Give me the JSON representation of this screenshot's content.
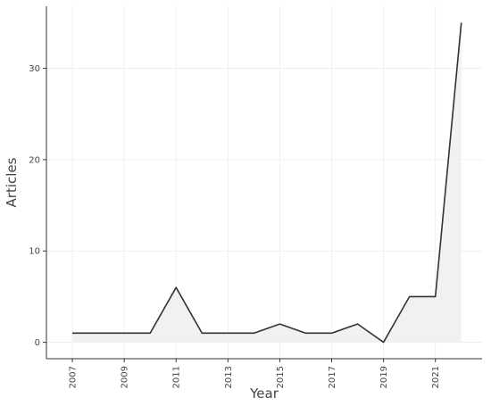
{
  "chart_data": {
    "type": "area",
    "xlabel": "Year",
    "ylabel": "Articles",
    "x": [
      2007,
      2008,
      2009,
      2010,
      2011,
      2012,
      2013,
      2014,
      2015,
      2016,
      2017,
      2018,
      2019,
      2020,
      2021,
      2022
    ],
    "values": [
      1,
      1,
      1,
      1,
      6,
      1,
      1,
      1,
      2,
      1,
      1,
      2,
      0,
      5,
      5,
      35
    ],
    "xlim": [
      2006.0,
      2022.8
    ],
    "ylim": [
      -1.8,
      36.8
    ],
    "x_ticks": [
      "2007",
      "2009",
      "2011",
      "2013",
      "2015",
      "2017",
      "2019",
      "2021"
    ],
    "y_ticks": [
      "0",
      "10",
      "20",
      "30"
    ],
    "grid": true,
    "colors": {
      "line": "#333333",
      "fill": "#f1f1ef",
      "grid": "#ececec",
      "axis": "#333333",
      "text": "#444444"
    }
  }
}
